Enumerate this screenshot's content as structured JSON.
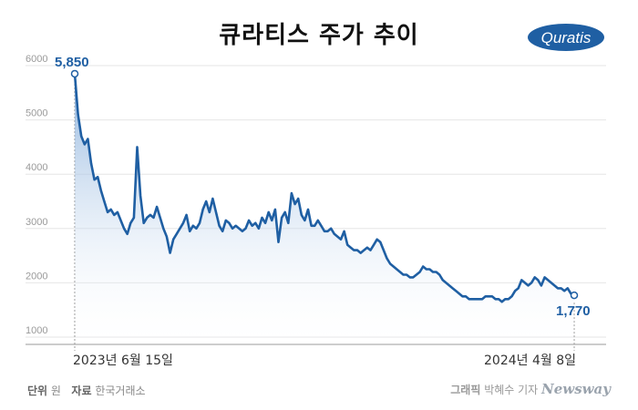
{
  "title": "큐라티스 주가 추이",
  "logo_text": "Quratis",
  "colors": {
    "line": "#1f5fa3",
    "area_top": "#7aa6d8",
    "grid": "#e6e6e6"
  },
  "footer": {
    "unit_label": "단위",
    "unit_value": "원",
    "source_label": "자료",
    "source_value": "한국거래소",
    "credit_label": "그래픽",
    "credit_value": "박혜수 기자",
    "brand": "Newsway"
  },
  "chart_data": {
    "type": "area",
    "title": "큐라티스 주가 추이",
    "ylim": [
      1000,
      6000
    ],
    "yticks": [
      "6000",
      "5000",
      "4000",
      "3000",
      "2000",
      "1000"
    ],
    "x_labels": {
      "start": "2023년 6월 15일",
      "end": "2024년 4월 8일"
    },
    "annotations": {
      "start_value": "5,850",
      "end_value": "1,770"
    },
    "grid": true,
    "series": [
      {
        "values": [
          5850,
          5100,
          4700,
          4550,
          4650,
          4200,
          3900,
          3950,
          3700,
          3500,
          3300,
          3350,
          3250,
          3300,
          3150,
          3000,
          2900,
          3100,
          3200,
          4500,
          3600,
          3100,
          3200,
          3250,
          3200,
          3400,
          3200,
          3000,
          2850,
          2550,
          2800,
          2900,
          3000,
          3100,
          3250,
          2950,
          3050,
          3000,
          3100,
          3350,
          3500,
          3300,
          3550,
          3300,
          3050,
          2950,
          3150,
          3100,
          3000,
          3050,
          3000,
          2950,
          3000,
          3150,
          3050,
          3100,
          3000,
          3200,
          3100,
          3300,
          3150,
          3350,
          2750,
          3200,
          3300,
          3100,
          3650,
          3450,
          3550,
          3250,
          3150,
          3350,
          3050,
          3050,
          3150,
          3050,
          2950,
          2950,
          3000,
          2900,
          2850,
          2800,
          2950,
          2700,
          2650,
          2600,
          2600,
          2550,
          2600,
          2650,
          2600,
          2700,
          2800,
          2750,
          2600,
          2450,
          2350,
          2300,
          2250,
          2200,
          2150,
          2150,
          2100,
          2100,
          2150,
          2200,
          2300,
          2250,
          2250,
          2200,
          2200,
          2150,
          2050,
          2000,
          1950,
          1900,
          1850,
          1800,
          1750,
          1750,
          1700,
          1700,
          1700,
          1700,
          1700,
          1750,
          1750,
          1750,
          1700,
          1700,
          1650,
          1700,
          1700,
          1750,
          1850,
          1900,
          2050,
          2000,
          1950,
          2000,
          2100,
          2050,
          1950,
          2100,
          2050,
          2000,
          1950,
          1900,
          1900,
          1850,
          1900,
          1800,
          1770
        ]
      }
    ]
  }
}
